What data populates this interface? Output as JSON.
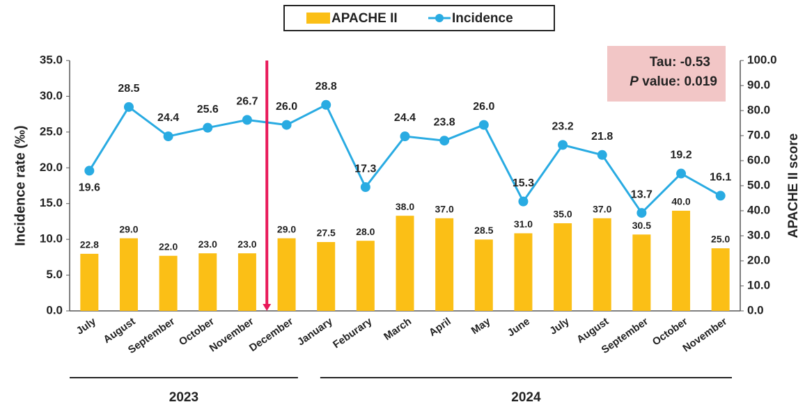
{
  "chart_data": {
    "type": "bar-line",
    "categories": [
      "July",
      "August",
      "September",
      "October",
      "November",
      "December",
      "January",
      "Feburary",
      "March",
      "April",
      "May",
      "June",
      "July",
      "August",
      "September",
      "October",
      "November"
    ],
    "series": [
      {
        "name": "APACHE II",
        "type": "bar",
        "axis": "y2",
        "color": "#fbbf16",
        "values": [
          22.8,
          29.0,
          22.0,
          23.0,
          23.0,
          29.0,
          27.5,
          28.0,
          38.0,
          37.0,
          28.5,
          31.0,
          35.0,
          37.0,
          30.5,
          40.0,
          25.0
        ],
        "value_labels": [
          "22.8",
          "29.0",
          "22.0",
          "23.0",
          "23.0",
          "29.0",
          "27.5",
          "28.0",
          "38.0",
          "37.0",
          "28.5",
          "31.0",
          "35.0",
          "37.0",
          "30.5",
          "40.0",
          "25.0"
        ]
      },
      {
        "name": "Incidence",
        "type": "line",
        "axis": "y",
        "color": "#29abe2",
        "values": [
          19.6,
          28.5,
          24.4,
          25.6,
          26.7,
          26.0,
          28.8,
          17.3,
          24.4,
          23.8,
          26.0,
          15.3,
          23.2,
          21.8,
          13.7,
          19.2,
          16.1
        ],
        "value_labels": [
          "19.6",
          "28.5",
          "24.4",
          "25.6",
          "26.7",
          "26.0",
          "28.8",
          "17.3",
          "24.4",
          "23.8",
          "26.0",
          "15.3",
          "23.2",
          "21.8",
          "13.7",
          "19.2",
          "16.1"
        ]
      }
    ],
    "ylabel": "Incidence rate (‰)",
    "y2label": "APACHE II score",
    "ylim": [
      0,
      35
    ],
    "yticks": [
      {
        "value": 0,
        "label": "0.0"
      },
      {
        "value": 5,
        "label": "5.0"
      },
      {
        "value": 10,
        "label": "10.0"
      },
      {
        "value": 15,
        "label": "15.0"
      },
      {
        "value": 20,
        "label": "20.0"
      },
      {
        "value": 25,
        "label": "25.0"
      },
      {
        "value": 30,
        "label": "30.0"
      },
      {
        "value": 35,
        "label": "35.0"
      }
    ],
    "y2lim": [
      0,
      100
    ],
    "y2ticks": [
      {
        "value": 0,
        "label": "0.0"
      },
      {
        "value": 10,
        "label": "10.0"
      },
      {
        "value": 20,
        "label": "20.0"
      },
      {
        "value": 30,
        "label": "30.0"
      },
      {
        "value": 40,
        "label": "40.0"
      },
      {
        "value": 50,
        "label": "50.0"
      },
      {
        "value": 60,
        "label": "60.0"
      },
      {
        "value": 70,
        "label": "70.0"
      },
      {
        "value": 80,
        "label": "80.0"
      },
      {
        "value": 90,
        "label": "90.0"
      },
      {
        "value": 100,
        "label": "100.0"
      }
    ],
    "groups": [
      {
        "label": "2023",
        "count": 6
      },
      {
        "label": "2024",
        "count": 11
      }
    ],
    "annotation": {
      "tau": "Tau: -0.53",
      "p_symbol": "P",
      "p_text": "value: 0.019"
    },
    "legend": "top"
  }
}
